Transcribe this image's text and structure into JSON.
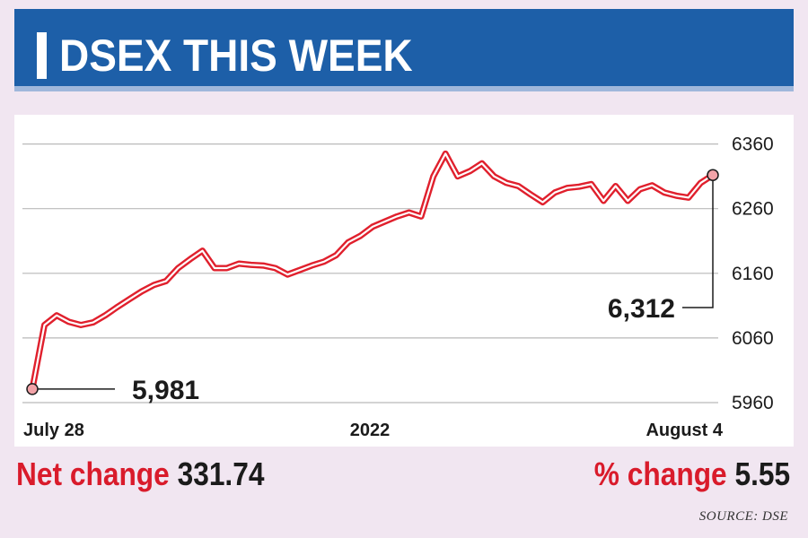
{
  "header": {
    "title": "DSEX THIS WEEK"
  },
  "chart_data": {
    "type": "line",
    "title": "DSEX THIS WEEK",
    "x_labels": [
      "July 28",
      "2022",
      "August 4"
    ],
    "y_ticks": [
      5960,
      6060,
      6160,
      6260,
      6360
    ],
    "ylim": [
      5960,
      6375
    ],
    "grid": true,
    "series": [
      {
        "values": [
          5981,
          6080,
          6095,
          6085,
          6080,
          6084,
          6095,
          6108,
          6120,
          6132,
          6142,
          6148,
          6168,
          6182,
          6195,
          6168,
          6168,
          6175,
          6173,
          6172,
          6168,
          6158,
          6165,
          6172,
          6178,
          6188,
          6208,
          6218,
          6232,
          6240,
          6248,
          6254,
          6248,
          6310,
          6345,
          6310,
          6318,
          6330,
          6310,
          6300,
          6295,
          6282,
          6270,
          6285,
          6292,
          6294,
          6298,
          6272,
          6295,
          6272,
          6290,
          6296,
          6285,
          6280,
          6277,
          6300,
          6312
        ],
        "color": "#e0202d"
      }
    ],
    "annotations": [
      {
        "label": "5,981",
        "value": 5981,
        "point": "start"
      },
      {
        "label": "6,312",
        "value": 6312,
        "point": "end"
      }
    ]
  },
  "footer": {
    "net_change_label": "Net change",
    "net_change_value": "331.74",
    "pct_change_label": "% change",
    "pct_change_value": "5.55"
  },
  "source": "SOURCE: DSE"
}
